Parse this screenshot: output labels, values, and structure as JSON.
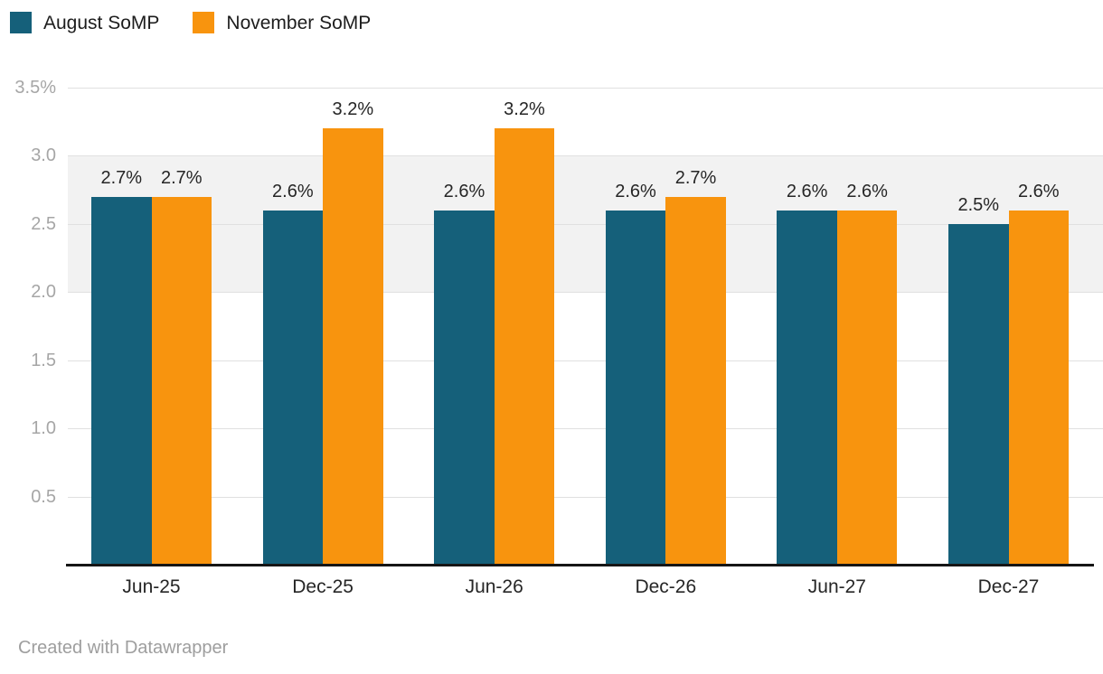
{
  "chart_data": {
    "type": "bar",
    "title": "",
    "categories": [
      "Jun-25",
      "Dec-25",
      "Jun-26",
      "Dec-26",
      "Jun-27",
      "Dec-27"
    ],
    "series": [
      {
        "name": "August SoMP",
        "color": "#15607a",
        "values": [
          2.7,
          2.6,
          2.6,
          2.6,
          2.6,
          2.5
        ],
        "labels": [
          "2.7%",
          "2.6%",
          "2.6%",
          "2.6%",
          "2.6%",
          "2.5%"
        ]
      },
      {
        "name": "November SoMP",
        "color": "#f8940e",
        "values": [
          2.7,
          3.2,
          3.2,
          2.7,
          2.6,
          2.6
        ],
        "labels": [
          "2.7%",
          "3.2%",
          "3.2%",
          "2.7%",
          "2.6%",
          "2.6%"
        ]
      }
    ],
    "ylim": [
      0,
      3.5
    ],
    "yticks": [
      {
        "value": 3.5,
        "label": "3.5%"
      },
      {
        "value": 3.0,
        "label": "3.0"
      },
      {
        "value": 2.5,
        "label": "2.5"
      },
      {
        "value": 2.0,
        "label": "2.0"
      },
      {
        "value": 1.5,
        "label": "1.5"
      },
      {
        "value": 1.0,
        "label": "1.0"
      },
      {
        "value": 0.5,
        "label": "0.5"
      }
    ],
    "highlight_band": {
      "from": 2.0,
      "to": 3.0,
      "color": "#f2f2f2"
    },
    "grid": "horizontal",
    "legend_position": "top-left",
    "xlabel": "",
    "ylabel": ""
  },
  "footer": {
    "credit": "Created with Datawrapper"
  }
}
